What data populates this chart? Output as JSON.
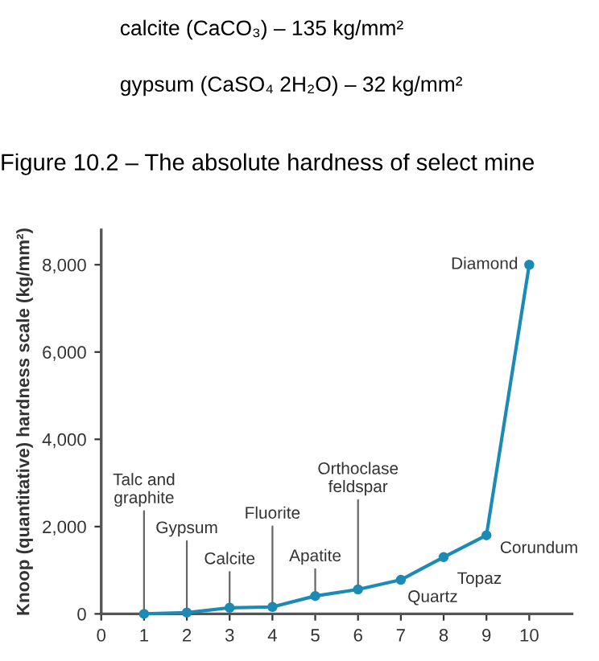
{
  "chart_data": {
    "type": "line",
    "title": "Figure 10.2 – The absolute hardness of select mine",
    "ylabel": "Knoop (quantitative) hardness scale (kg/mm²)",
    "x": [
      1,
      2,
      3,
      4,
      5,
      6,
      7,
      8,
      9,
      10
    ],
    "series": [
      {
        "color": "#1b8bb5",
        "values": [
          0,
          30,
          140,
          160,
          410,
          560,
          780,
          1300,
          1800,
          8000
        ]
      }
    ],
    "xlim": [
      0,
      11
    ],
    "xticks": [
      0,
      1,
      2,
      3,
      4,
      5,
      6,
      7,
      8,
      9,
      10
    ],
    "ylim": [
      0,
      8800
    ],
    "yticks": [
      0,
      {
        "value": 2000,
        "label": "2,000"
      },
      {
        "value": 4000,
        "label": "4,000"
      },
      {
        "value": 6000,
        "label": "6,000"
      },
      {
        "value": 8000,
        "label": "8,000"
      }
    ],
    "grid": false,
    "marker": "circle",
    "line_style": "solid",
    "annotations": [
      "calcite (CaCO₃) – 135 kg/mm²",
      "gypsum (CaSO₄ 2H₂O) – 32 kg/mm²",
      {
        "text": "Talc and\ngraphite",
        "x": 1,
        "y": 0
      },
      {
        "text": "Gypsum",
        "x": 2,
        "y": 30
      },
      {
        "text": "Calcite",
        "x": 3,
        "y": 140
      },
      {
        "text": "Fluorite",
        "x": 4,
        "y": 160
      },
      {
        "text": "Apatite",
        "x": 5,
        "y": 410
      },
      {
        "text": "Orthoclase\nfeldspar",
        "x": 6,
        "y": 560
      },
      {
        "text": "Quartz",
        "x": 7,
        "y": 780
      },
      {
        "text": "Topaz",
        "x": 8,
        "y": 1300
      },
      {
        "text": "Corundum",
        "x": 9,
        "y": 1800
      },
      {
        "text": "Diamond",
        "x": 10,
        "y": 8000
      }
    ]
  }
}
